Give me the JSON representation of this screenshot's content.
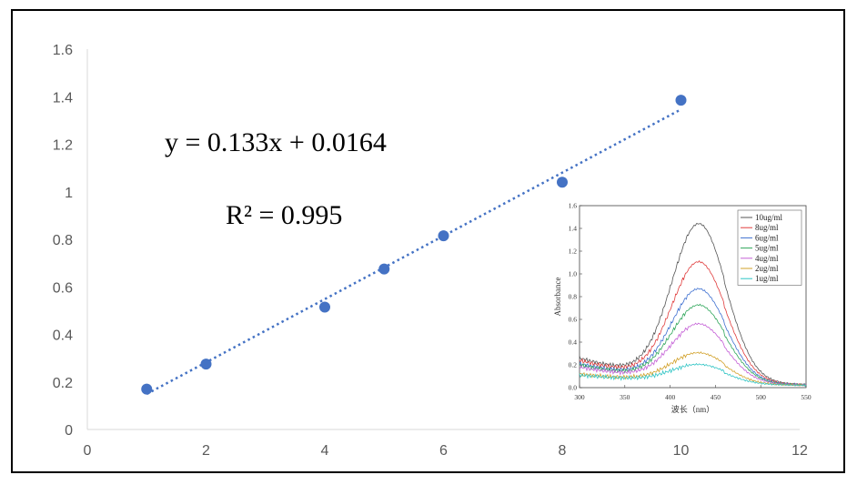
{
  "chart_data": [
    {
      "type": "scatter",
      "x": [
        1,
        2,
        4,
        5,
        6,
        8,
        10
      ],
      "y": [
        0.17,
        0.275,
        0.515,
        0.675,
        0.815,
        1.04,
        1.385
      ],
      "xlim": [
        0,
        12
      ],
      "ylim": [
        0,
        1.6
      ],
      "xticks": [
        "0",
        "2",
        "4",
        "6",
        "8",
        "10",
        "12"
      ],
      "yticks": [
        "0",
        "0.2",
        "0.4",
        "0.6",
        "0.8",
        "1",
        "1.2",
        "1.4",
        "1.6"
      ],
      "trendline": {
        "slope": 0.133,
        "intercept": 0.0164,
        "x_range": [
          1,
          10
        ],
        "style": "dotted"
      },
      "annotations": [
        "y = 0.133x + 0.0164",
        "R² = 0.995"
      ],
      "point_color": "#4472C4",
      "grid": false
    },
    {
      "type": "line",
      "xlabel": "波长（nm）",
      "ylabel": "Absorbance",
      "xlim": [
        300,
        550
      ],
      "ylim": [
        0,
        1.6
      ],
      "xticks": [
        "300",
        "350",
        "400",
        "450",
        "500",
        "550"
      ],
      "yticks": [
        "0.0",
        "0.2",
        "0.4",
        "0.6",
        "0.8",
        "1.0",
        "1.2",
        "1.4",
        "1.6"
      ],
      "legend_position": "top-right",
      "peak_x": 432,
      "series": [
        {
          "name": "10ug/ml",
          "color": "#555555",
          "start": 0.21,
          "peak": 1.38
        },
        {
          "name": "8ug/ml",
          "color": "#e03c3c",
          "start": 0.19,
          "peak": 1.05
        },
        {
          "name": "6ug/ml",
          "color": "#3d6fd0",
          "start": 0.16,
          "peak": 0.82
        },
        {
          "name": "5ug/ml",
          "color": "#2fa65a",
          "start": 0.15,
          "peak": 0.68
        },
        {
          "name": "4ug/ml",
          "color": "#c45fd6",
          "start": 0.13,
          "peak": 0.52
        },
        {
          "name": "2ug/ml",
          "color": "#d2a12a",
          "start": 0.07,
          "peak": 0.28
        },
        {
          "name": "1ug/ml",
          "color": "#2ec4c4",
          "start": 0.06,
          "peak": 0.18
        }
      ]
    }
  ]
}
